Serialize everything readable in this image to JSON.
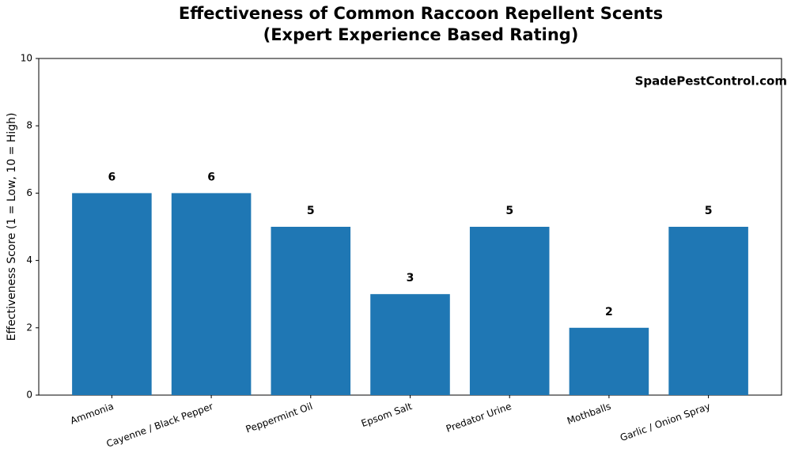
{
  "chart_data": {
    "type": "bar",
    "title": "Effectiveness of Common Raccoon Repellent Scents",
    "subtitle": "(Expert Experience Based Rating)",
    "annotation": "SpadePestControl.com",
    "y_label": "Effectiveness Score (1 = Low, 10 = High)",
    "categories": [
      "Ammonia",
      "Cayenne / Black Pepper",
      "Peppermint Oil",
      "Epsom Salt",
      "Predator Urine",
      "Mothballs",
      "Garlic / Onion Spray"
    ],
    "values": [
      6,
      6,
      5,
      3,
      5,
      2,
      5
    ],
    "color": "#1f77b4",
    "ylim": [
      0,
      10
    ],
    "yticks": [
      0,
      2,
      4,
      6,
      8,
      10
    ],
    "grid": false
  }
}
